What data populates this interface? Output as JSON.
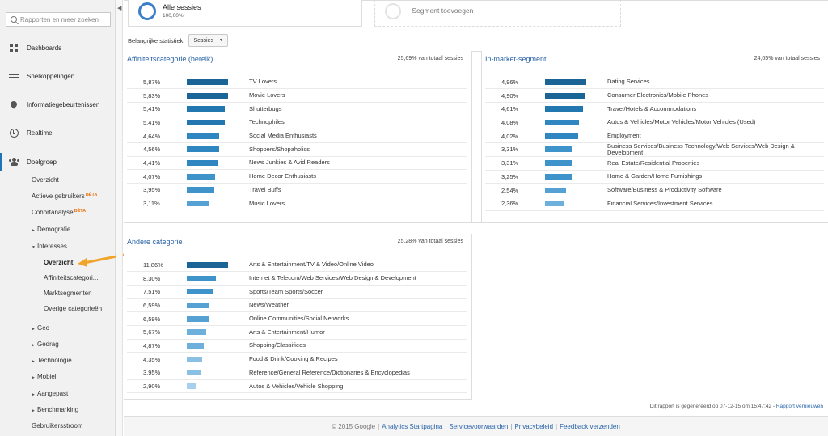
{
  "sidebar": {
    "search_placeholder": "Rapporten en meer zoeken",
    "nav": [
      {
        "label": "Dashboards",
        "icon": "grid-icon"
      },
      {
        "label": "Snelkoppelingen",
        "icon": "link-icon"
      },
      {
        "label": "Informatiegebeurtenissen",
        "icon": "pin-icon"
      },
      {
        "label": "Realtime",
        "icon": "clock-icon"
      },
      {
        "label": "Doelgroep",
        "icon": "people-icon"
      }
    ],
    "audience": {
      "overzicht": "Overzicht",
      "actieve": "Actieve gebruikers",
      "cohort": "Cohortanalyse",
      "beta": "BÈTA",
      "demografie": "Demografie",
      "interesses": "Interesses",
      "interesses_sub": [
        "Overzicht",
        "Affiniteitscategori...",
        "Marktsegmenten",
        "Overige categorieën"
      ],
      "geo": "Geo",
      "gedrag": "Gedrag",
      "technologie": "Technologie",
      "mobiel": "Mobiel",
      "aangepast": "Aangepast",
      "benchmarking": "Benchmarking",
      "gebruikersstroom": "Gebruikersstroom"
    }
  },
  "segments": {
    "active_title": "Alle sessies",
    "active_sub": "100,00%",
    "add_label": "+ Segment toevoegen"
  },
  "stat": {
    "label": "Belangrijke statistiek:",
    "value": "Sessies"
  },
  "panels": {
    "affinity": {
      "title": "Affiniteitscategorie (bereik)",
      "total": "25,69% van totaal sessies",
      "rows": [
        {
          "pct": "5,87%",
          "value": 5.87,
          "label": "TV Lovers"
        },
        {
          "pct": "5,83%",
          "value": 5.83,
          "label": "Movie Lovers"
        },
        {
          "pct": "5,41%",
          "value": 5.41,
          "label": "Shutterbugs"
        },
        {
          "pct": "5,41%",
          "value": 5.41,
          "label": "Technophiles"
        },
        {
          "pct": "4,64%",
          "value": 4.64,
          "label": "Social Media Enthusiasts"
        },
        {
          "pct": "4,56%",
          "value": 4.56,
          "label": "Shoppers/Shopaholics"
        },
        {
          "pct": "4,41%",
          "value": 4.41,
          "label": "News Junkies & Avid Readers"
        },
        {
          "pct": "4,07%",
          "value": 4.07,
          "label": "Home Decor Enthusiasts"
        },
        {
          "pct": "3,95%",
          "value": 3.95,
          "label": "Travel Buffs"
        },
        {
          "pct": "3,11%",
          "value": 3.11,
          "label": "Music Lovers"
        }
      ]
    },
    "inmarket": {
      "title": "In-market-segment",
      "total": "24,05% van totaal sessies",
      "rows": [
        {
          "pct": "4,96%",
          "value": 4.96,
          "label": "Dating Services"
        },
        {
          "pct": "4,90%",
          "value": 4.9,
          "label": "Consumer Electronics/Mobile Phones"
        },
        {
          "pct": "4,61%",
          "value": 4.61,
          "label": "Travel/Hotels & Accommodations"
        },
        {
          "pct": "4,08%",
          "value": 4.08,
          "label": "Autos & Vehicles/Motor Vehicles/Motor Vehicles (Used)"
        },
        {
          "pct": "4,02%",
          "value": 4.02,
          "label": "Employment"
        },
        {
          "pct": "3,31%",
          "value": 3.31,
          "label": "Business Services/Business Technology/Web Services/Web Design & Development"
        },
        {
          "pct": "3,31%",
          "value": 3.31,
          "label": "Real Estate/Residential Properties"
        },
        {
          "pct": "3,25%",
          "value": 3.25,
          "label": "Home & Garden/Home Furnishings"
        },
        {
          "pct": "2,54%",
          "value": 2.54,
          "label": "Software/Business & Productivity Software"
        },
        {
          "pct": "2,36%",
          "value": 2.36,
          "label": "Financial Services/Investment Services"
        }
      ]
    },
    "other": {
      "title": "Andere categorie",
      "total": "25,28% van totaal sessies",
      "rows": [
        {
          "pct": "11,86%",
          "value": 11.86,
          "label": "Arts & Entertainment/TV & Video/Online Video"
        },
        {
          "pct": "8,30%",
          "value": 8.3,
          "label": "Internet & Telecom/Web Services/Web Design & Development"
        },
        {
          "pct": "7,51%",
          "value": 7.51,
          "label": "Sports/Team Sports/Soccer"
        },
        {
          "pct": "6,59%",
          "value": 6.59,
          "label": "News/Weather"
        },
        {
          "pct": "6,59%",
          "value": 6.59,
          "label": "Online Communities/Social Networks"
        },
        {
          "pct": "5,67%",
          "value": 5.67,
          "label": "Arts & Entertainment/Humor"
        },
        {
          "pct": "4,87%",
          "value": 4.87,
          "label": "Shopping/Classifieds"
        },
        {
          "pct": "4,35%",
          "value": 4.35,
          "label": "Food & Drink/Cooking & Recipes"
        },
        {
          "pct": "3,95%",
          "value": 3.95,
          "label": "Reference/General Reference/Dictionaries & Encyclopedias"
        },
        {
          "pct": "2,90%",
          "value": 2.9,
          "label": "Autos & Vehicles/Vehicle Shopping"
        }
      ]
    }
  },
  "colors": {
    "bar_scale": [
      "#1a6496",
      "#2277b1",
      "#2f86c1",
      "#3f93cb",
      "#56a1d3",
      "#6db0dc",
      "#8ac0e4",
      "#a6d0ec",
      "#bedcf1"
    ]
  },
  "report_note": {
    "text": "Dit rapport is gegenereerd op 07-12-15 om 15:47:42 -",
    "link": "Rapport vernieuwen"
  },
  "footer": {
    "copyright": "© 2015 Google",
    "links": [
      "Analytics Startpagina",
      "Servicevoorwaarden",
      "Privacybeleid",
      "Feedback verzenden"
    ]
  }
}
